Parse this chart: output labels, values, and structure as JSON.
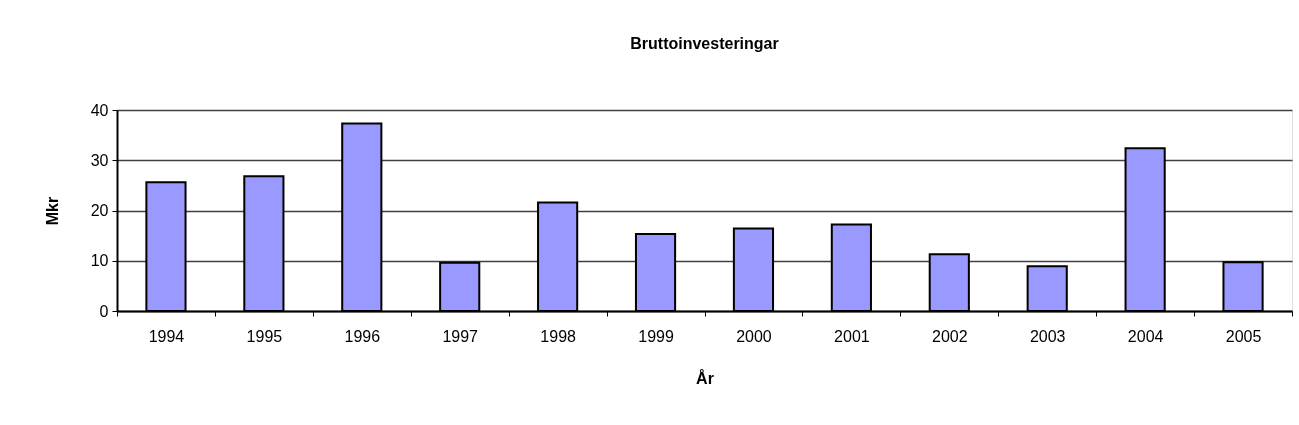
{
  "chart_data": {
    "type": "bar",
    "title": "Bruttoinvesteringar",
    "xlabel": "År",
    "ylabel": "Mkr",
    "categories": [
      "1994",
      "1995",
      "1996",
      "1997",
      "1998",
      "1999",
      "2000",
      "2001",
      "2002",
      "2003",
      "2004",
      "2005"
    ],
    "values": [
      25.6,
      26.8,
      37.3,
      9.6,
      21.6,
      15.3,
      16.4,
      17.2,
      11.3,
      8.9,
      32.4,
      9.7
    ],
    "color": "#9999ff",
    "ylim": [
      0,
      40
    ],
    "yticks": [
      0,
      10,
      20,
      30,
      40
    ],
    "grid": "y"
  }
}
